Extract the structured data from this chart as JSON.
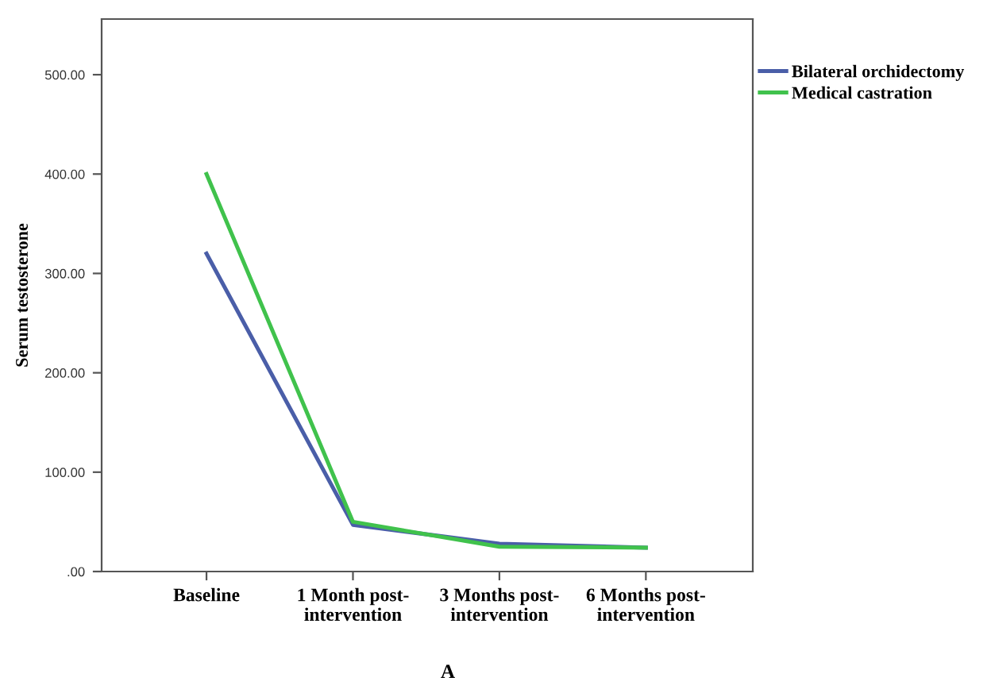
{
  "chart_data": {
    "type": "line",
    "ylabel": "Serum testosterone",
    "categories": [
      "Baseline",
      "1 Month post-\nintervention",
      "3 Months post-\nintervention",
      "6 Months post-\nintervention"
    ],
    "series": [
      {
        "name": "Bilateral orchidectomy",
        "color": "#4a5ea8",
        "values": [
          320,
          47,
          28,
          24
        ]
      },
      {
        "name": "Medical castration",
        "color": "#40c24c",
        "values": [
          400,
          50,
          25,
          24
        ]
      }
    ],
    "ylim": [
      0,
      556
    ],
    "yticks": [
      {
        "value": 0,
        "label": ".00"
      },
      {
        "value": 100,
        "label": "100.00"
      },
      {
        "value": 200,
        "label": "200.00"
      },
      {
        "value": 300,
        "label": "300.00"
      },
      {
        "value": 400,
        "label": "400.00"
      },
      {
        "value": 500,
        "label": "500.00"
      }
    ],
    "grid": false,
    "legend": "top right",
    "marker": "none",
    "line_style": "solid",
    "annotations": [
      "A"
    ]
  }
}
